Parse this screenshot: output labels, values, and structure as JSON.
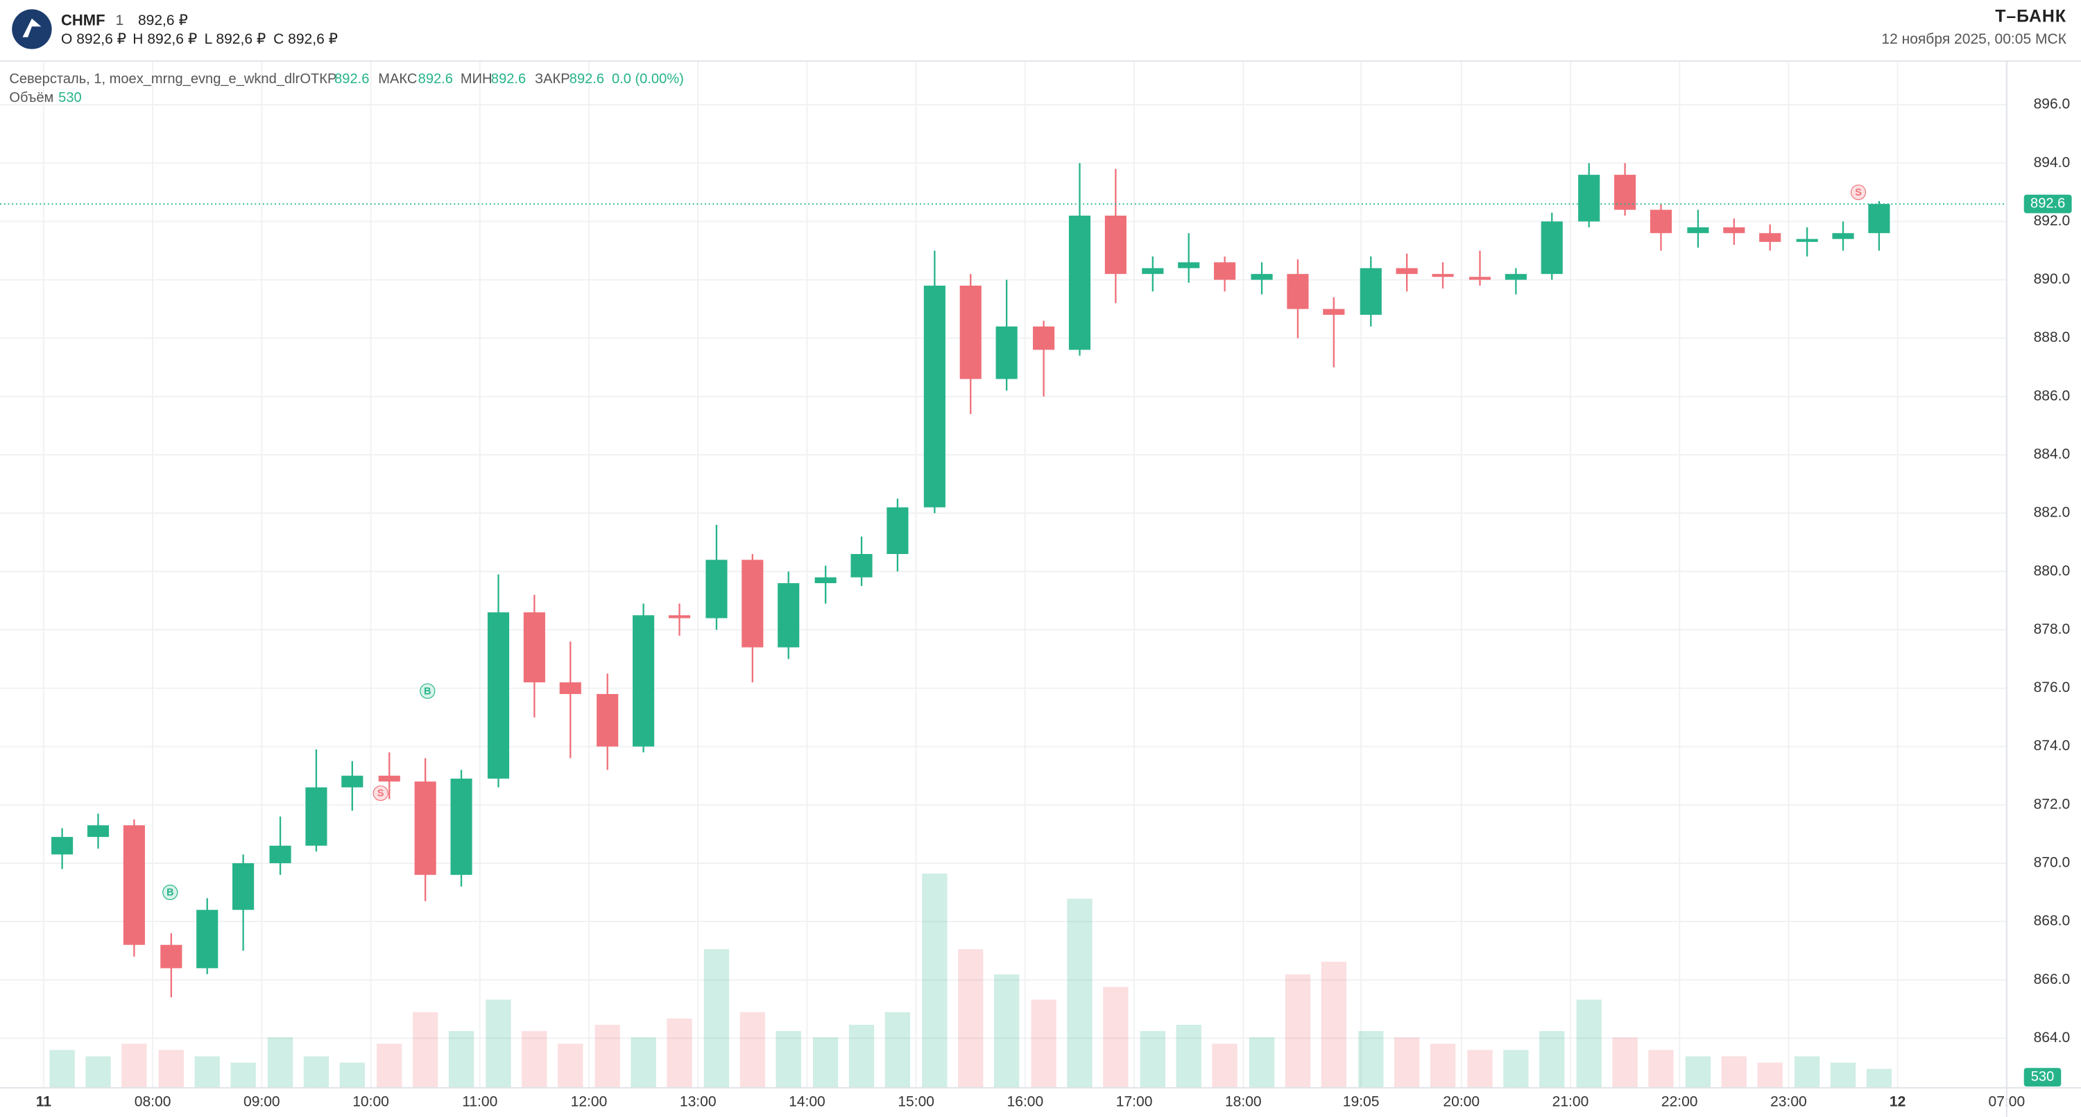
{
  "chart_data": {
    "type": "candlestick",
    "symbol": "CHMF",
    "interval": "1",
    "price": "892,6 ₽",
    "ohlc": [
      "O 892,6 ₽",
      "H 892,6 ₽",
      "L 892,6 ₽",
      "C 892,6 ₽"
    ],
    "brand": "Т–БАНК",
    "datetime": "12 ноября 2025, 00:05 МСК",
    "legend": {
      "name": "Северсталь, 1, moex_mrng_evng_e_wknd_dlr",
      "items": [
        {
          "label": "ОТКР",
          "value": 892.6
        },
        {
          "label": "МАКС",
          "value": 892.6
        },
        {
          "label": "МИН",
          "value": 892.6
        },
        {
          "label": "ЗАКР",
          "value": 892.6
        }
      ],
      "change": "0.0 (0.00%)",
      "volume_label": "Объём",
      "volume_value": 530
    },
    "last_price": 892.6,
    "up_color": "#26b38a",
    "down_color": "#ef6f78",
    "x": [
      7.17,
      7.5,
      7.83,
      8.17,
      8.5,
      8.83,
      9.17,
      9.5,
      9.83,
      10.17,
      10.5,
      10.83,
      11.17,
      11.5,
      11.83,
      12.17,
      12.5,
      12.83,
      13.17,
      13.5,
      13.83,
      14.17,
      14.5,
      14.83,
      15.17,
      15.5,
      15.83,
      16.17,
      16.5,
      16.83,
      17.17,
      17.5,
      17.83,
      18.17,
      18.5,
      18.83,
      19.17,
      19.5,
      19.83,
      20.17,
      20.5,
      20.83,
      21.17,
      21.5,
      21.83,
      22.17,
      22.5,
      22.83,
      23.17,
      23.5,
      23.83
    ],
    "open": [
      870.3,
      870.9,
      871.3,
      867.2,
      866.4,
      868.4,
      870.0,
      870.6,
      872.6,
      873.0,
      872.8,
      869.6,
      872.9,
      878.6,
      876.2,
      875.8,
      874.0,
      878.5,
      878.4,
      880.4,
      877.4,
      879.6,
      879.8,
      880.6,
      882.2,
      889.8,
      886.6,
      888.4,
      887.6,
      892.2,
      890.2,
      890.4,
      890.6,
      890.0,
      890.2,
      889.0,
      888.8,
      890.4,
      890.2,
      890.1,
      890.0,
      890.2,
      892.0,
      893.6,
      892.4,
      891.6,
      891.8,
      891.6,
      891.3,
      891.4,
      891.6
    ],
    "high": [
      871.2,
      871.7,
      871.5,
      867.6,
      868.8,
      870.3,
      871.6,
      873.9,
      873.5,
      873.8,
      873.6,
      873.2,
      879.9,
      879.2,
      877.6,
      876.5,
      878.9,
      878.9,
      881.6,
      880.6,
      880.0,
      880.2,
      881.2,
      882.5,
      891.0,
      890.2,
      890.0,
      888.6,
      894.0,
      893.8,
      890.8,
      891.6,
      890.8,
      890.6,
      890.7,
      889.4,
      890.8,
      890.9,
      890.6,
      891.0,
      890.4,
      892.3,
      894.0,
      894.0,
      892.6,
      892.4,
      892.1,
      891.9,
      891.8,
      892.0,
      892.7
    ],
    "low": [
      869.8,
      870.5,
      866.8,
      865.4,
      866.2,
      867.0,
      869.6,
      870.4,
      871.8,
      872.2,
      868.7,
      869.2,
      872.6,
      875.0,
      873.6,
      873.2,
      873.8,
      877.8,
      878.0,
      876.2,
      877.0,
      878.9,
      879.5,
      880.0,
      882.0,
      885.4,
      886.2,
      886.0,
      887.4,
      889.2,
      889.6,
      889.9,
      889.6,
      889.5,
      888.0,
      887.0,
      888.4,
      889.6,
      889.7,
      889.8,
      889.5,
      890.0,
      891.8,
      892.2,
      891.0,
      891.1,
      891.2,
      891.0,
      890.8,
      891.0,
      891.0
    ],
    "close": [
      870.9,
      871.3,
      867.2,
      866.4,
      868.4,
      870.0,
      870.6,
      872.6,
      873.0,
      872.8,
      869.6,
      872.9,
      878.6,
      876.2,
      875.8,
      874.0,
      878.5,
      878.4,
      880.4,
      877.4,
      879.6,
      879.8,
      880.6,
      882.2,
      889.8,
      886.6,
      888.4,
      887.6,
      892.2,
      890.2,
      890.4,
      890.6,
      890.0,
      890.2,
      889.0,
      888.8,
      890.4,
      890.2,
      890.1,
      890.0,
      890.2,
      892.0,
      893.6,
      892.4,
      891.6,
      891.8,
      891.6,
      891.3,
      891.4,
      891.6,
      892.6
    ],
    "volume": [
      6000,
      5000,
      7000,
      6000,
      5000,
      4000,
      8000,
      5000,
      4000,
      7000,
      12000,
      9000,
      14000,
      9000,
      7000,
      10000,
      8000,
      11000,
      22000,
      12000,
      9000,
      8000,
      10000,
      12000,
      34000,
      22000,
      18000,
      14000,
      30000,
      16000,
      9000,
      10000,
      7000,
      8000,
      18000,
      20000,
      9000,
      8000,
      7000,
      6000,
      6000,
      9000,
      14000,
      8000,
      6000,
      5000,
      5000,
      4000,
      5000,
      4000,
      3000
    ],
    "volume_lim": [
      0,
      40000
    ],
    "trades": [
      {
        "label": "B",
        "x": 8.16,
        "y": 869.0
      },
      {
        "label": "S",
        "x": 10.09,
        "y": 872.4
      },
      {
        "label": "B",
        "x": 10.52,
        "y": 875.9
      },
      {
        "label": "S",
        "x": 23.64,
        "y": 893.0
      }
    ],
    "xlim": [
      6.6,
      25
    ],
    "xticks": [
      {
        "value": 7,
        "label": "11"
      },
      {
        "value": 8,
        "label": "08:00"
      },
      {
        "value": 9,
        "label": "09:00"
      },
      {
        "value": 10,
        "label": "10:00"
      },
      {
        "value": 11,
        "label": "11:00"
      },
      {
        "value": 12,
        "label": "12:00"
      },
      {
        "value": 13,
        "label": "13:00"
      },
      {
        "value": 14,
        "label": "14:00"
      },
      {
        "value": 15,
        "label": "15:00"
      },
      {
        "value": 16,
        "label": "16:00"
      },
      {
        "value": 17,
        "label": "17:00"
      },
      {
        "value": 18,
        "label": "18:00"
      },
      {
        "value": 19.08,
        "label": "19:05"
      },
      {
        "value": 20,
        "label": "20:00"
      },
      {
        "value": 21,
        "label": "21:00"
      },
      {
        "value": 22,
        "label": "22:00"
      },
      {
        "value": 23,
        "label": "23:00"
      },
      {
        "value": 24,
        "label": "12"
      },
      {
        "value": 25,
        "label": "07:00"
      }
    ],
    "ylim": [
      862.3,
      897.5
    ],
    "yticks": [
      {
        "value": 864,
        "label": "864.0"
      },
      {
        "value": 866,
        "label": "866.0"
      },
      {
        "value": 868,
        "label": "868.0"
      },
      {
        "value": 870,
        "label": "870.0"
      },
      {
        "value": 872,
        "label": "872.0"
      },
      {
        "value": 874,
        "label": "874.0"
      },
      {
        "value": 876,
        "label": "876.0"
      },
      {
        "value": 878,
        "label": "878.0"
      },
      {
        "value": 880,
        "label": "880.0"
      },
      {
        "value": 882,
        "label": "882.0"
      },
      {
        "value": 884,
        "label": "884.0"
      },
      {
        "value": 886,
        "label": "886.0"
      },
      {
        "value": 888,
        "label": "888.0"
      },
      {
        "value": 890,
        "label": "890.0"
      },
      {
        "value": 892,
        "label": "892.0"
      },
      {
        "value": 894,
        "label": "894.0"
      },
      {
        "value": 896,
        "label": "896.0"
      }
    ],
    "grid": true
  }
}
